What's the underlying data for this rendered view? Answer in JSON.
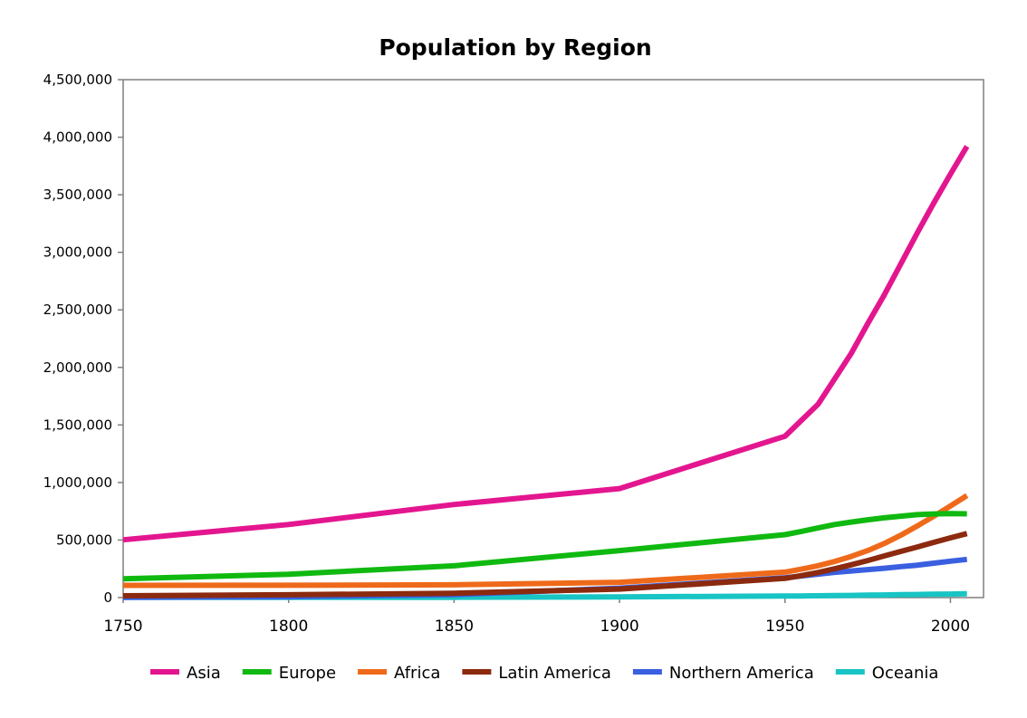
{
  "chart_data": {
    "type": "line",
    "title": "Population by Region",
    "xlabel": "",
    "ylabel": "",
    "xlim": [
      1750,
      2010
    ],
    "ylim": [
      0,
      4500000
    ],
    "grid": false,
    "legend_position": "bottom",
    "x_ticks": [
      1750,
      1800,
      1850,
      1900,
      1950,
      2000
    ],
    "x_tick_labels": [
      "1750",
      "1800",
      "1850",
      "1900",
      "1950",
      "2000"
    ],
    "y_ticks": [
      0,
      500000,
      1000000,
      1500000,
      2000000,
      2500000,
      3000000,
      3500000,
      4000000,
      4500000
    ],
    "y_tick_labels": [
      "0",
      "500,000",
      "1,000,000",
      "1,500,000",
      "2,000,000",
      "2,500,000",
      "3,000,000",
      "3,500,000",
      "4,000,000",
      "4,500,000"
    ],
    "x": [
      1750,
      1800,
      1850,
      1900,
      1950,
      1955,
      1960,
      1965,
      1970,
      1975,
      1980,
      1985,
      1990,
      1995,
      2000,
      2005
    ],
    "series": [
      {
        "name": "Asia",
        "color": "#E3168F",
        "values": [
          502000,
          635000,
          809000,
          947000,
          1402000,
          1540000,
          1680000,
          1900000,
          2120000,
          2380000,
          2630000,
          2900000,
          3170000,
          3430000,
          3680000,
          3920000
        ]
      },
      {
        "name": "Europe",
        "color": "#10B910",
        "values": [
          163000,
          203000,
          276000,
          408000,
          547000,
          575000,
          605000,
          635000,
          656000,
          676000,
          693000,
          707000,
          721000,
          727000,
          729000,
          728000
        ]
      },
      {
        "name": "Africa",
        "color": "#EE6A1A",
        "values": [
          106000,
          107000,
          111000,
          133000,
          221000,
          247000,
          277000,
          314000,
          357000,
          408000,
          470000,
          542000,
          622000,
          707000,
          796000,
          887000
        ]
      },
      {
        "name": "Latin America",
        "color": "#8B2A0E",
        "values": [
          16000,
          24000,
          38000,
          74000,
          167000,
          191000,
          218000,
          250000,
          285000,
          322000,
          362000,
          401000,
          440000,
          480000,
          519000,
          556000
        ]
      },
      {
        "name": "Northern America",
        "color": "#3A5FE0",
        "values": [
          2000,
          7000,
          26000,
          82000,
          172000,
          187000,
          204000,
          219000,
          231000,
          243000,
          255000,
          269000,
          282000,
          299000,
          316000,
          332000
        ]
      },
      {
        "name": "Oceania",
        "color": "#18C4C4",
        "values": [
          2000,
          2000,
          2000,
          6000,
          13000,
          14000,
          16000,
          18000,
          19000,
          21000,
          23000,
          25000,
          27000,
          29000,
          31000,
          33000
        ]
      }
    ]
  }
}
